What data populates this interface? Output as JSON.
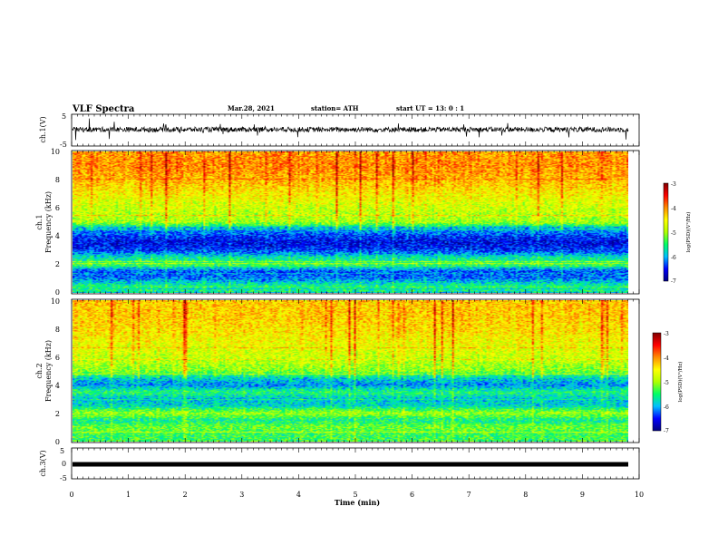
{
  "header": {
    "title": "VLF Spectra",
    "date": "Mar.28, 2021",
    "station": "station= ATH",
    "start_ut": "start  UT =   13: 0  : 1"
  },
  "colors": {
    "spectrum": [
      "#00007f",
      "#0000ff",
      "#00bfff",
      "#00ff66",
      "#b0ff00",
      "#ffff00",
      "#ff8c00",
      "#ff0000",
      "#7f0000"
    ]
  },
  "chart_data": [
    {
      "id": "ch1-waveform",
      "type": "line",
      "ylabel": "ch.1(V)",
      "ylim": [
        -5,
        5
      ],
      "y_ticks": [
        "5",
        "-5"
      ],
      "xlim": [
        0,
        10
      ],
      "baseline_volts": 0.2
    },
    {
      "id": "ch1-spectrogram",
      "type": "heatmap",
      "ylabel": "ch.1\nFrequency (kHz)",
      "ylim": [
        0,
        10
      ],
      "y_ticks": [
        "0",
        "2",
        "4",
        "6",
        "8",
        "10"
      ],
      "xlim": [
        0,
        9.8
      ],
      "colorbar": {
        "label": "log(PSD)(V²/Hz)",
        "range": [
          -7,
          -3
        ],
        "ticks": [
          "-3",
          "-4",
          "-5",
          "-6",
          "-7"
        ]
      },
      "frequency_profile_log_psd": [
        {
          "f_khz": 0.5,
          "value": -5.6
        },
        {
          "f_khz": 1.0,
          "value": -6.2
        },
        {
          "f_khz": 1.5,
          "value": -6.3
        },
        {
          "f_khz": 2.0,
          "value": -5.4
        },
        {
          "f_khz": 2.5,
          "value": -5.7
        },
        {
          "f_khz": 3.0,
          "value": -6.4
        },
        {
          "f_khz": 3.5,
          "value": -6.6
        },
        {
          "f_khz": 4.0,
          "value": -6.4
        },
        {
          "f_khz": 4.5,
          "value": -6.0
        },
        {
          "f_khz": 5.0,
          "value": -5.0
        },
        {
          "f_khz": 6.0,
          "value": -4.8
        },
        {
          "f_khz": 7.0,
          "value": -4.5
        },
        {
          "f_khz": 8.0,
          "value": -4.2
        },
        {
          "f_khz": 9.0,
          "value": -4.0
        },
        {
          "f_khz": 10.0,
          "value": -4.1
        }
      ]
    },
    {
      "id": "ch2-spectrogram",
      "type": "heatmap",
      "ylabel": "ch.2\nFrequency (kHz)",
      "ylim": [
        0,
        10
      ],
      "y_ticks": [
        "0",
        "2",
        "4",
        "6",
        "8",
        "10"
      ],
      "xlim": [
        0,
        9.8
      ],
      "colorbar": {
        "label": "log(PSD)(V²/Hz)",
        "range": [
          -7,
          -3
        ],
        "ticks": [
          "-3",
          "-4",
          "-5",
          "-6",
          "-7"
        ]
      },
      "frequency_profile_log_psd": [
        {
          "f_khz": 0.5,
          "value": -5.4
        },
        {
          "f_khz": 1.0,
          "value": -5.2
        },
        {
          "f_khz": 1.5,
          "value": -5.6
        },
        {
          "f_khz": 2.0,
          "value": -5.0
        },
        {
          "f_khz": 2.5,
          "value": -5.8
        },
        {
          "f_khz": 3.0,
          "value": -5.9
        },
        {
          "f_khz": 3.5,
          "value": -5.5
        },
        {
          "f_khz": 4.0,
          "value": -6.1
        },
        {
          "f_khz": 4.5,
          "value": -5.8
        },
        {
          "f_khz": 5.0,
          "value": -5.1
        },
        {
          "f_khz": 6.0,
          "value": -4.8
        },
        {
          "f_khz": 7.0,
          "value": -4.6
        },
        {
          "f_khz": 8.0,
          "value": -4.4
        },
        {
          "f_khz": 9.0,
          "value": -4.3
        },
        {
          "f_khz": 10.0,
          "value": -4.3
        }
      ]
    },
    {
      "id": "ch3-waveform",
      "type": "line",
      "ylabel": "ch.3(V)",
      "ylim": [
        -5,
        5
      ],
      "y_ticks": [
        "5",
        "0",
        "-5"
      ],
      "xlim": [
        0,
        9.8
      ],
      "baseline_volts": 0.0,
      "xlabel": "Time  (min)",
      "x_ticks": [
        "0",
        "1",
        "2",
        "3",
        "4",
        "5",
        "6",
        "7",
        "8",
        "9",
        "10"
      ]
    }
  ]
}
